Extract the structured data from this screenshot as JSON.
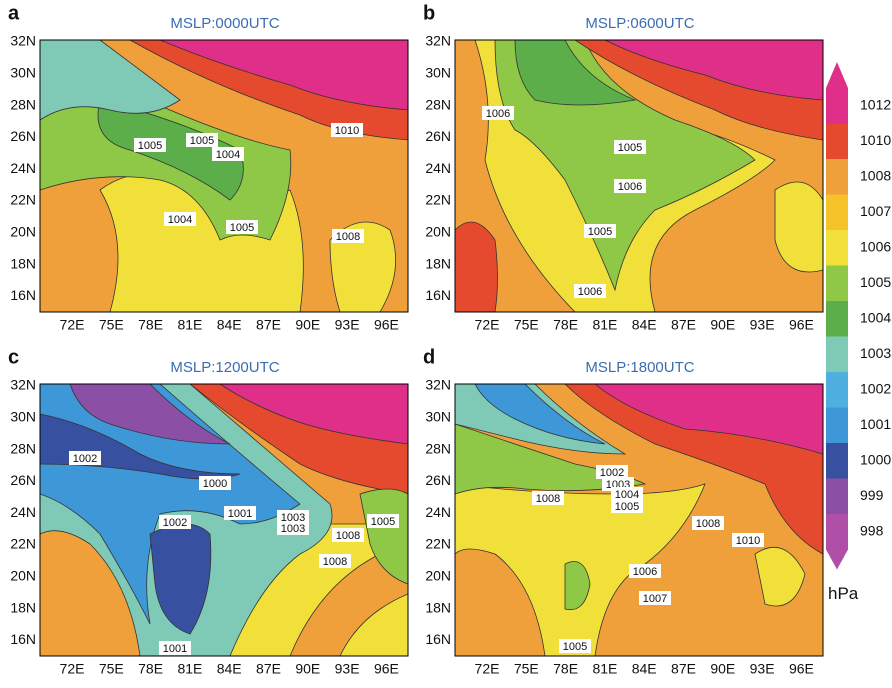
{
  "panels": [
    {
      "letter": "a",
      "title": "MSLP:0000UTC",
      "contour_labels": [
        1005,
        1005,
        1004,
        1010,
        1004,
        1005,
        1008
      ]
    },
    {
      "letter": "b",
      "title": "MSLP:0600UTC",
      "contour_labels": [
        1006,
        1005,
        1006,
        1005,
        1006
      ]
    },
    {
      "letter": "c",
      "title": "MSLP:1200UTC",
      "contour_labels": [
        1002,
        1000,
        1001,
        1002,
        1003,
        1003,
        1008,
        1005,
        1008,
        1001
      ]
    },
    {
      "letter": "d",
      "title": "MSLP:1800UTC",
      "contour_labels": [
        1002,
        1003,
        1004,
        1005,
        1008,
        1008,
        1010,
        1006,
        1007,
        1005
      ]
    }
  ],
  "lon_ticks": [
    "72E",
    "75E",
    "78E",
    "81E",
    "84E",
    "87E",
    "90E",
    "93E",
    "96E"
  ],
  "lat_ticks": [
    "32N",
    "30N",
    "28N",
    "26N",
    "24N",
    "22N",
    "20N",
    "18N",
    "16N"
  ],
  "colorbar": {
    "unit": "hPa",
    "levels": [
      1012,
      1010,
      1008,
      1007,
      1006,
      1005,
      1004,
      1003,
      1002,
      1001,
      1000,
      999,
      998
    ],
    "colors": [
      "#df2f88",
      "#e64a2e",
      "#f0a03a",
      "#f5c22a",
      "#f2e03a",
      "#8fc746",
      "#5cae4b",
      "#7fcab6",
      "#4fb0e0",
      "#3e97d6",
      "#3750a0",
      "#8b4fa5",
      "#b04fa8"
    ]
  }
}
